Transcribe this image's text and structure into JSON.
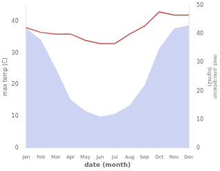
{
  "chart_data": {
    "type": "line",
    "categories": [
      "Jan",
      "Feb",
      "Mar",
      "Apr",
      "May",
      "Jun",
      "Jul",
      "Aug",
      "Sep",
      "Oct",
      "Nov",
      "Dec"
    ],
    "series": [
      {
        "type": "area",
        "color": "#b0bcec",
        "axis": "y2",
        "values": [
          42,
          38,
          28,
          17,
          13,
          11,
          12,
          15,
          22,
          35,
          42,
          43
        ]
      },
      {
        "type": "line",
        "color": "#c0504d",
        "values": [
          38,
          36.5,
          36,
          36,
          34,
          33,
          33,
          36,
          38.5,
          43,
          42,
          42
        ]
      }
    ],
    "xlabel": "date (month)",
    "ylabel": "max temp (C)",
    "y2label": "med. precipitation\n(kg/m2)",
    "ylim": [
      0,
      45
    ],
    "yticks": [
      0,
      10,
      20,
      30,
      40
    ],
    "y2lim": [
      0,
      50
    ],
    "y2ticks": [
      0,
      10,
      20,
      30,
      40,
      50
    ],
    "grid": false
  }
}
